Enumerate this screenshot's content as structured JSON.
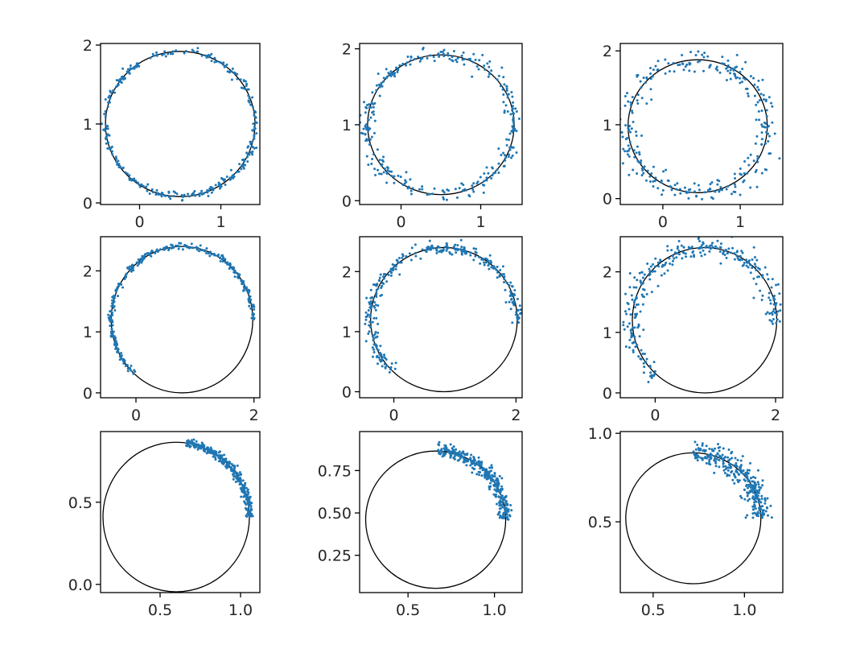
{
  "colors": {
    "points": "#1f77b4",
    "circle": "#000000",
    "axes": "#000000",
    "background": "#ffffff"
  },
  "chart_data": [
    {
      "type": "scatter",
      "grid": false,
      "circle": {
        "cx": 0.5,
        "cy": 1.0,
        "r": 0.92
      },
      "arc": {
        "start": 0,
        "end": 360
      },
      "noise": 0.025,
      "n_points": 300,
      "xlim": [
        -0.48,
        1.48
      ],
      "ylim": [
        -0.02,
        2.02
      ],
      "xticks": [
        0,
        1
      ],
      "xticklabels": [
        "0",
        "1"
      ],
      "yticks": [
        0,
        1,
        2
      ],
      "yticklabels": [
        "0",
        "1",
        "2"
      ]
    },
    {
      "type": "scatter",
      "grid": false,
      "circle": {
        "cx": 0.5,
        "cy": 1.0,
        "r": 0.92
      },
      "arc": {
        "start": 0,
        "end": 360
      },
      "noise": 0.05,
      "n_points": 300,
      "xlim": [
        -0.52,
        1.52
      ],
      "ylim": [
        -0.05,
        2.07
      ],
      "xticks": [
        0,
        1
      ],
      "xticklabels": [
        "0",
        "1"
      ],
      "yticks": [
        0,
        1,
        2
      ],
      "yticklabels": [
        "0",
        "1",
        "2"
      ]
    },
    {
      "type": "scatter",
      "grid": false,
      "circle": {
        "cx": 0.45,
        "cy": 0.98,
        "r": 0.9
      },
      "arc": {
        "start": 0,
        "end": 360
      },
      "noise": 0.09,
      "n_points": 300,
      "xlim": [
        -0.55,
        1.55
      ],
      "ylim": [
        -0.08,
        2.1
      ],
      "xticks": [
        0,
        1
      ],
      "xticklabels": [
        "0",
        "1"
      ],
      "yticks": [
        0,
        1,
        2
      ],
      "yticklabels": [
        "0",
        "1",
        "2"
      ]
    },
    {
      "type": "scatter",
      "grid": false,
      "circle": {
        "cx": 0.78,
        "cy": 1.2,
        "r": 1.2
      },
      "arc": {
        "start": -3,
        "end": 228
      },
      "noise": 0.025,
      "n_points": 300,
      "xlim": [
        -0.6,
        2.1
      ],
      "ylim": [
        -0.08,
        2.56
      ],
      "xticks": [
        0,
        2
      ],
      "xticklabels": [
        "0",
        "2"
      ],
      "yticks": [
        0,
        1,
        2
      ],
      "yticklabels": [
        "0",
        "1",
        "2"
      ]
    },
    {
      "type": "scatter",
      "grid": false,
      "circle": {
        "cx": 0.82,
        "cy": 1.2,
        "r": 1.2
      },
      "arc": {
        "start": -3,
        "end": 228
      },
      "noise": 0.05,
      "n_points": 300,
      "xlim": [
        -0.56,
        2.1
      ],
      "ylim": [
        -0.1,
        2.58
      ],
      "xticks": [
        0,
        2
      ],
      "xticklabels": [
        "0",
        "2"
      ],
      "yticks": [
        0,
        1,
        2
      ],
      "yticklabels": [
        "0",
        "1",
        "2"
      ]
    },
    {
      "type": "scatter",
      "grid": false,
      "circle": {
        "cx": 0.82,
        "cy": 1.2,
        "r": 1.2
      },
      "arc": {
        "start": -3,
        "end": 228
      },
      "noise": 0.09,
      "n_points": 300,
      "xlim": [
        -0.58,
        2.12
      ],
      "ylim": [
        -0.08,
        2.58
      ],
      "xticks": [
        0,
        2
      ],
      "xticklabels": [
        "0",
        "2"
      ],
      "yticks": [
        0,
        1,
        2
      ],
      "yticklabels": [
        "0",
        "1",
        "2"
      ]
    },
    {
      "type": "scatter",
      "grid": false,
      "circle": {
        "cx": 0.6,
        "cy": 0.41,
        "r": 0.455
      },
      "arc": {
        "start": 0,
        "end": 82
      },
      "noise": 0.012,
      "n_points": 300,
      "xlim": [
        0.13,
        1.12
      ],
      "ylim": [
        -0.05,
        0.93
      ],
      "xticks": [
        0.5,
        1.0
      ],
      "xticklabels": [
        "0.5",
        "1.0"
      ],
      "yticks": [
        0.0,
        0.5
      ],
      "yticklabels": [
        "0.0",
        "0.5"
      ]
    },
    {
      "type": "scatter",
      "grid": false,
      "circle": {
        "cx": 0.66,
        "cy": 0.46,
        "r": 0.405
      },
      "arc": {
        "start": 0,
        "end": 88
      },
      "noise": 0.02,
      "n_points": 300,
      "xlim": [
        0.22,
        1.16
      ],
      "ylim": [
        0.03,
        0.98
      ],
      "xticks": [
        0.5,
        1.0
      ],
      "xticklabels": [
        "0.5",
        "1.0"
      ],
      "yticks": [
        0.25,
        0.5,
        0.75
      ],
      "yticklabels": [
        "0.25",
        "0.50",
        "0.75"
      ]
    },
    {
      "type": "scatter",
      "grid": false,
      "circle": {
        "cx": 0.72,
        "cy": 0.52,
        "r": 0.37
      },
      "arc": {
        "start": 0,
        "end": 90
      },
      "noise": 0.03,
      "n_points": 300,
      "xlim": [
        0.32,
        1.21
      ],
      "ylim": [
        0.1,
        1.01
      ],
      "xticks": [
        0.5,
        1.0
      ],
      "xticklabels": [
        "0.5",
        "1.0"
      ],
      "yticks": [
        0.5,
        1.0
      ],
      "yticklabels": [
        "0.5",
        "1.0"
      ]
    }
  ]
}
